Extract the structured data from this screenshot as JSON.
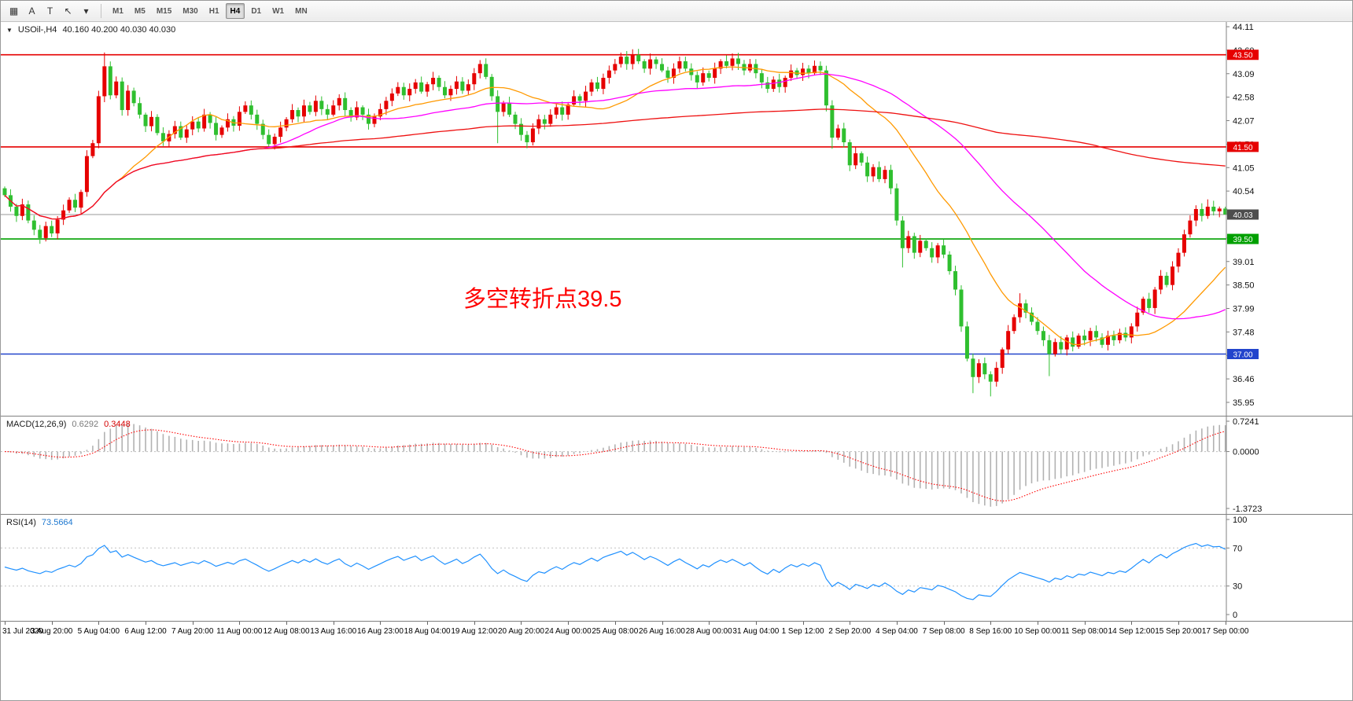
{
  "toolbar": {
    "icons": [
      {
        "name": "chart-windows-icon",
        "glyph": "▦"
      },
      {
        "name": "arrow-tool-icon",
        "glyph": "A"
      },
      {
        "name": "text-tool-icon",
        "glyph": "T"
      },
      {
        "name": "cursor-tool-icon",
        "glyph": "↖"
      },
      {
        "name": "tools-dropdown-icon",
        "glyph": "▾"
      }
    ],
    "timeframes": [
      "M1",
      "M5",
      "M15",
      "M30",
      "H1",
      "H4",
      "D1",
      "W1",
      "MN"
    ],
    "active_timeframe": "H4"
  },
  "chart_header": {
    "dropdown_glyph": "▼",
    "symbol": "USOil-,H4",
    "ohlc": "40.160 40.200 40.030 40.030"
  },
  "annotation": {
    "text": "多空转折点39.5",
    "color": "#ff0000"
  },
  "price_axis": {
    "labels": [
      "44.11",
      "43.60",
      "43.09",
      "42.58",
      "42.07",
      "41.56",
      "41.05",
      "40.54",
      "40.03",
      "39.52",
      "39.01",
      "38.50",
      "37.99",
      "37.48",
      "36.97",
      "36.46",
      "35.95"
    ]
  },
  "hlines": [
    {
      "name": "resistance-line-4350",
      "price": 43.5,
      "color": "#e60000",
      "width": 1.6,
      "tag": "43.50",
      "tag_bg": "#e60000"
    },
    {
      "name": "resistance-line-4150",
      "price": 41.5,
      "color": "#e60000",
      "width": 1.6,
      "tag": "41.50",
      "tag_bg": "#e60000"
    },
    {
      "name": "pivot-line-3950",
      "price": 39.5,
      "color": "#00a000",
      "width": 1.6,
      "tag": "39.50",
      "tag_bg": "#00a000"
    },
    {
      "name": "support-line-3700",
      "price": 37.0,
      "color": "#2244cc",
      "width": 1.6,
      "tag": "37.00",
      "tag_bg": "#2244cc"
    },
    {
      "name": "bid-price-line",
      "price": 40.03,
      "color": "#9a9a9a",
      "width": 1,
      "tag": "40.03",
      "tag_bg": "#4d4d4d"
    }
  ],
  "colors": {
    "bull": "#e60000",
    "bear": "#2fbf2f",
    "macd_histogram": "#b2b2b2",
    "macd_signal": "#ff0000",
    "rsi_line": "#1e90ff",
    "panel_border": "#808080"
  },
  "chart_data": {
    "type": "candlestick",
    "symbol": "USOil",
    "timeframe": "H4",
    "y_range": [
      35.95,
      44.11
    ],
    "bars_per_label": 8,
    "x_labels": [
      "31 Jul 2020",
      "3 Aug 20:00",
      "5 Aug 04:00",
      "6 Aug 12:00",
      "7 Aug 20:00",
      "11 Aug 00:00",
      "12 Aug 08:00",
      "13 Aug 16:00",
      "16 Aug 23:00",
      "18 Aug 04:00",
      "19 Aug 12:00",
      "20 Aug 20:00",
      "24 Aug 00:00",
      "25 Aug 08:00",
      "26 Aug 16:00",
      "28 Aug 00:00",
      "31 Aug 04:00",
      "1 Sep 12:00",
      "2 Sep 20:00",
      "4 Sep 04:00",
      "7 Sep 08:00",
      "8 Sep 16:00",
      "10 Sep 00:00",
      "11 Sep 08:00",
      "14 Sep 12:00",
      "15 Sep 20:00",
      "17 Sep 00:00"
    ],
    "first_open": 40.6,
    "closes": [
      40.45,
      40.2,
      40.0,
      40.25,
      39.9,
      39.7,
      39.52,
      39.78,
      39.62,
      39.92,
      40.12,
      40.35,
      40.18,
      40.52,
      41.3,
      41.58,
      42.6,
      43.25,
      42.62,
      42.92,
      42.3,
      42.72,
      42.45,
      42.2,
      41.95,
      42.15,
      41.8,
      41.62,
      41.78,
      41.95,
      41.7,
      41.88,
      42.05,
      41.9,
      42.2,
      42.02,
      41.76,
      41.92,
      42.1,
      41.96,
      42.26,
      42.4,
      42.2,
      42.0,
      41.76,
      41.56,
      41.72,
      41.92,
      42.1,
      42.3,
      42.16,
      42.4,
      42.26,
      42.5,
      42.32,
      42.2,
      42.4,
      42.56,
      42.3,
      42.14,
      42.36,
      42.2,
      42.0,
      42.16,
      42.32,
      42.5,
      42.66,
      42.8,
      42.62,
      42.76,
      42.9,
      42.7,
      42.86,
      43.0,
      42.8,
      42.62,
      42.76,
      42.92,
      42.72,
      42.86,
      43.1,
      43.3,
      43.02,
      42.6,
      42.26,
      42.46,
      42.2,
      42.0,
      41.76,
      41.6,
      41.9,
      42.1,
      42.0,
      42.2,
      42.36,
      42.2,
      42.42,
      42.6,
      42.5,
      42.7,
      42.9,
      42.76,
      43.0,
      43.16,
      43.3,
      43.46,
      43.3,
      43.5,
      43.36,
      43.2,
      43.4,
      43.3,
      43.16,
      43.0,
      43.2,
      43.36,
      43.2,
      43.06,
      42.9,
      43.1,
      43.0,
      43.2,
      43.36,
      43.26,
      43.42,
      43.3,
      43.16,
      43.3,
      43.1,
      42.9,
      42.76,
      42.96,
      42.8,
      43.0,
      43.16,
      43.06,
      43.2,
      43.1,
      43.26,
      43.16,
      42.4,
      41.7,
      41.9,
      41.6,
      41.1,
      41.36,
      41.16,
      40.86,
      41.06,
      40.8,
      41.0,
      40.6,
      39.9,
      39.3,
      39.56,
      39.2,
      39.46,
      39.3,
      39.1,
      39.36,
      39.16,
      38.8,
      38.4,
      37.6,
      36.9,
      36.5,
      36.8,
      36.56,
      36.4,
      36.7,
      37.1,
      37.5,
      37.8,
      38.1,
      37.9,
      37.7,
      37.5,
      37.3,
      37.0,
      37.26,
      37.1,
      37.36,
      37.16,
      37.4,
      37.3,
      37.5,
      37.36,
      37.2,
      37.4,
      37.3,
      37.46,
      37.36,
      37.6,
      37.9,
      38.2,
      38.0,
      38.4,
      38.7,
      38.5,
      38.9,
      39.2,
      39.6,
      39.9,
      40.15,
      40.0,
      40.2,
      40.1,
      40.16,
      40.03
    ],
    "wick_overrides": {
      "17": [
        43.55,
        null
      ],
      "84": [
        null,
        41.58
      ],
      "89": [
        null,
        41.47
      ],
      "107": [
        43.62,
        null
      ],
      "124": [
        43.53,
        null
      ],
      "141": [
        null,
        41.46
      ],
      "153": [
        null,
        38.88
      ],
      "165": [
        null,
        36.15
      ],
      "168": [
        null,
        36.08
      ],
      "173": [
        38.32,
        null
      ],
      "178": [
        null,
        36.52
      ],
      "205": [
        40.36,
        null
      ],
      "208": [
        40.2,
        40.03
      ]
    },
    "moving_averages": [
      {
        "name": "ma-fast-orange-line",
        "window": 20,
        "color": "#ff9900"
      },
      {
        "name": "ma-mid-magenta-line",
        "window": 45,
        "color": "#ff00ff"
      },
      {
        "name": "ma-slow-red-line",
        "window": 170,
        "color": "#ee1111"
      }
    ],
    "indicators": {
      "macd": {
        "label": "MACD(12,26,9)",
        "fast": 12,
        "slow": 26,
        "signal": 9,
        "current_macd": "0.6292",
        "current_signal": "0.3448",
        "axis_max": "0.7241",
        "axis_zero": "0.0000",
        "axis_min": "-1.3723"
      },
      "rsi": {
        "label": "RSI(14)",
        "period": 14,
        "current": "73.5664",
        "levels": [
          70,
          30
        ],
        "axis": [
          "100",
          "70",
          "30",
          "0"
        ]
      }
    }
  }
}
